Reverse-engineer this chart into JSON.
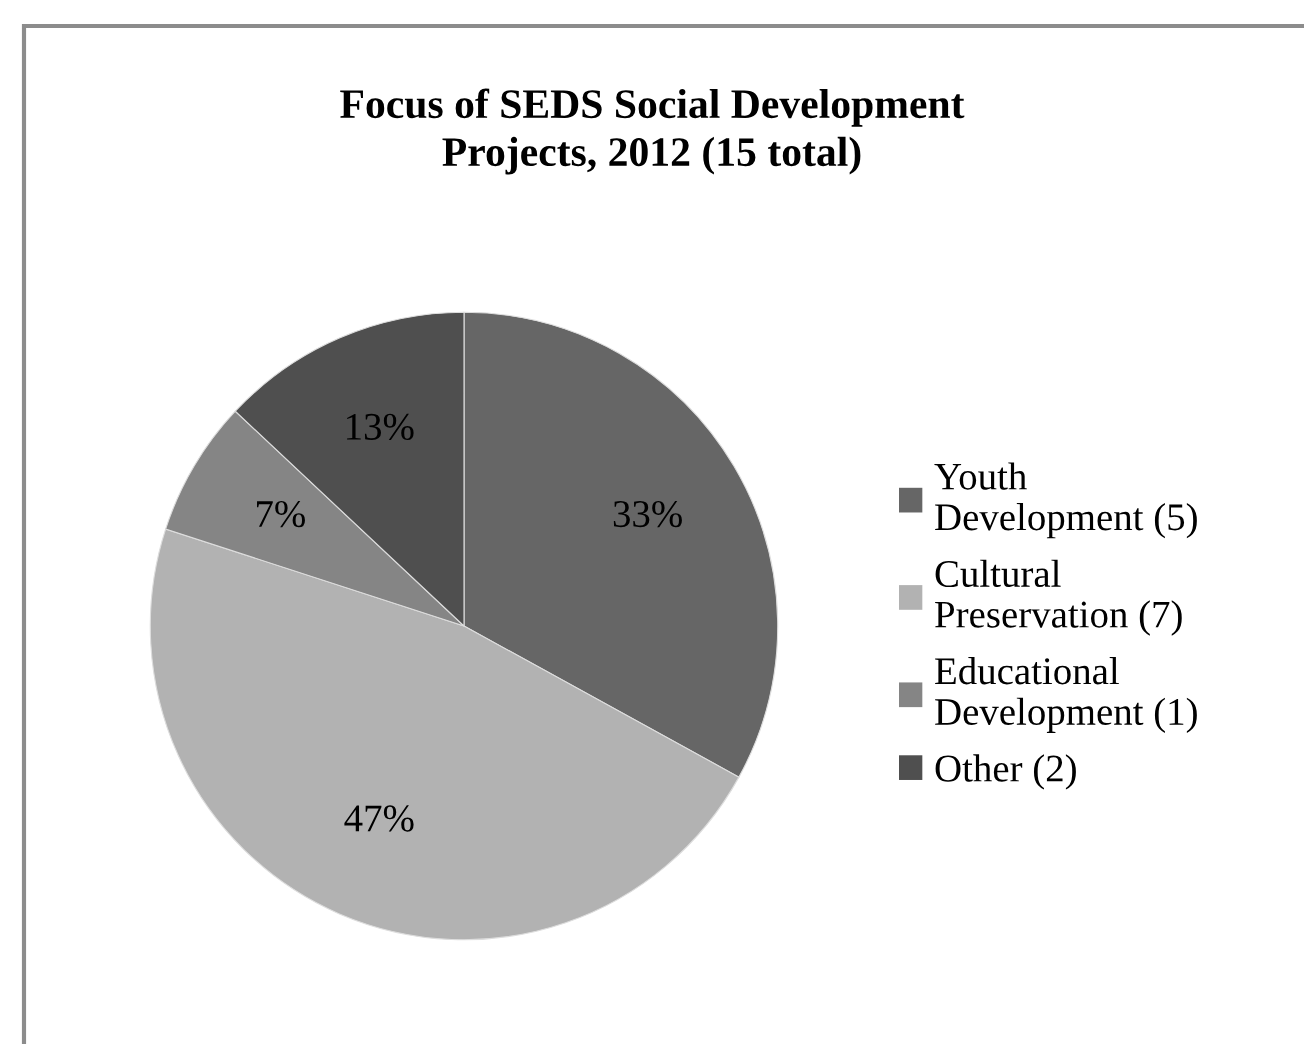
{
  "chart_data": {
    "type": "pie",
    "title": "Focus of SEDS Social Development Projects, 2012 (15 total)",
    "categories": [
      "Youth Development (5)",
      "Cultural Preservation (7)",
      "Educational Development (1)",
      "Other (2)"
    ],
    "values": [
      33,
      47,
      7,
      13
    ],
    "colors": [
      "#666666",
      "#b2b2b2",
      "#858585",
      "#4f4f4f"
    ],
    "value_labels": [
      "33%",
      "47%",
      "7%",
      "13%"
    ],
    "legend": "right"
  }
}
